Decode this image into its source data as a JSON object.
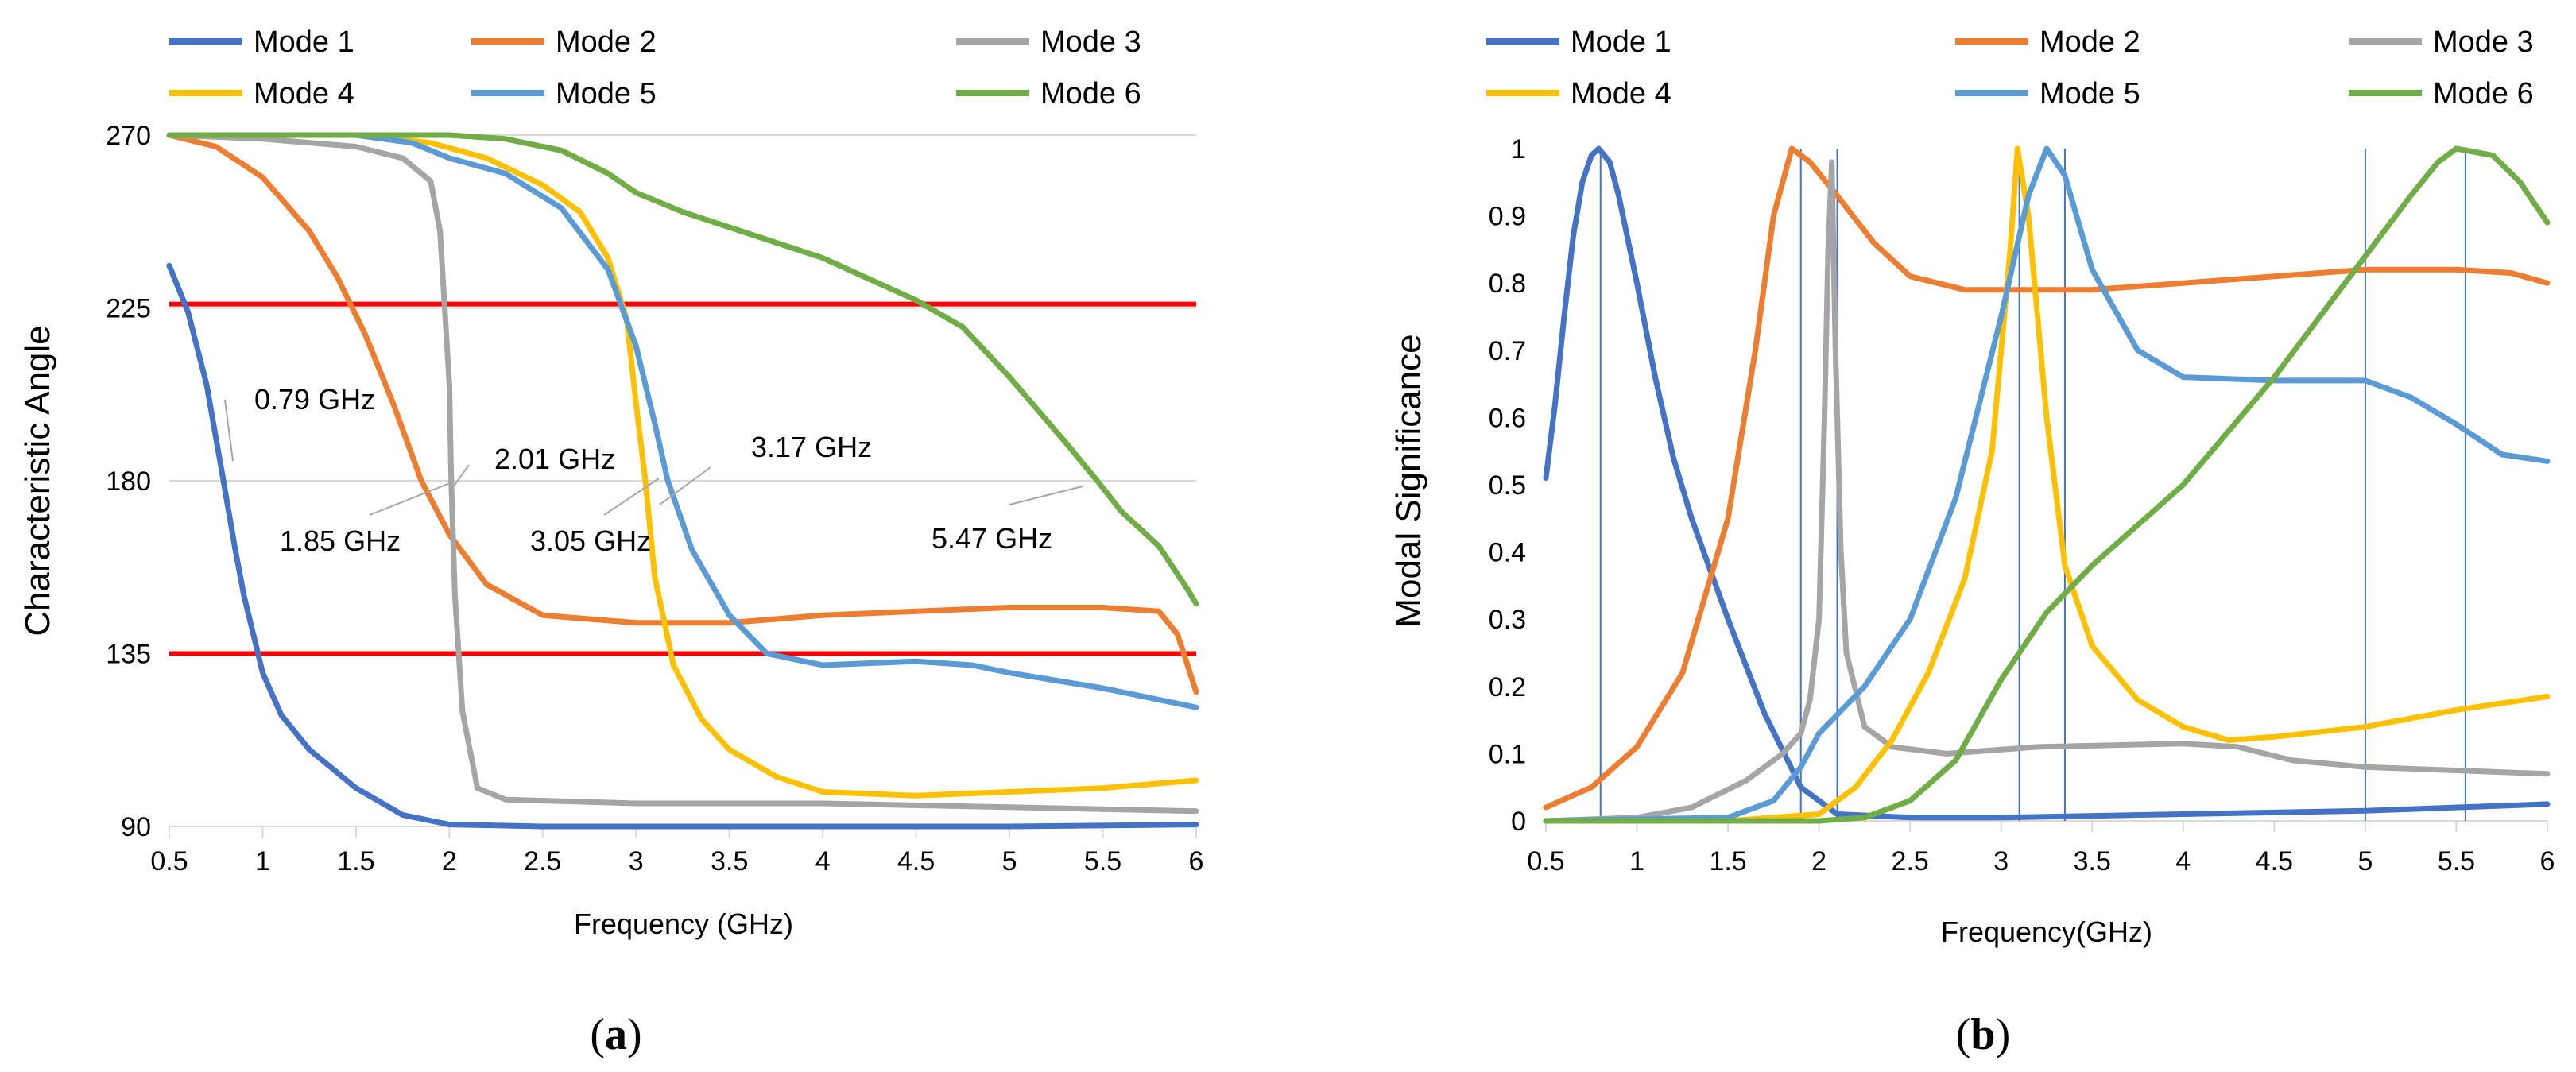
{
  "chart_data": [
    {
      "id": "a",
      "type": "line",
      "caption": "a",
      "xlabel": "Frequency (GHz)",
      "ylabel": "Characteristic Angle",
      "xlim": [
        0.5,
        6
      ],
      "ylim": [
        90,
        270
      ],
      "x_ticks": [
        "0.5",
        "1",
        "1.5",
        "2",
        "2.5",
        "3",
        "3.5",
        "4",
        "4.5",
        "5",
        "5.5",
        "6"
      ],
      "y_ticks": [
        "90",
        "135",
        "180",
        "225",
        "270"
      ],
      "grid": "horizontal",
      "legend": "top",
      "series": [
        {
          "name": "Mode 1",
          "color": "#4472C4",
          "points": [
            [
              0.5,
              236
            ],
            [
              0.6,
              224
            ],
            [
              0.7,
              205
            ],
            [
              0.79,
              180
            ],
            [
              0.85,
              163
            ],
            [
              0.9,
              150
            ],
            [
              1.0,
              130
            ],
            [
              1.1,
              119
            ],
            [
              1.25,
              110
            ],
            [
              1.5,
              100
            ],
            [
              1.75,
              93
            ],
            [
              2.0,
              90.5
            ],
            [
              2.5,
              90
            ],
            [
              3,
              90
            ],
            [
              4,
              90
            ],
            [
              5,
              90
            ],
            [
              6,
              90.5
            ]
          ]
        },
        {
          "name": "Mode 2",
          "color": "#ED7D31",
          "points": [
            [
              0.5,
              270
            ],
            [
              0.75,
              267
            ],
            [
              1.0,
              259
            ],
            [
              1.25,
              245
            ],
            [
              1.4,
              233
            ],
            [
              1.55,
              218
            ],
            [
              1.7,
              200
            ],
            [
              1.85,
              180
            ],
            [
              2.0,
              166
            ],
            [
              2.2,
              153
            ],
            [
              2.5,
              145
            ],
            [
              3.0,
              143
            ],
            [
              3.5,
              143
            ],
            [
              4.0,
              145
            ],
            [
              4.5,
              146
            ],
            [
              5.0,
              147
            ],
            [
              5.5,
              147
            ],
            [
              5.8,
              146
            ],
            [
              5.9,
              140
            ],
            [
              6.0,
              125
            ]
          ]
        },
        {
          "name": "Mode 3",
          "color": "#A5A5A5",
          "points": [
            [
              0.5,
              270
            ],
            [
              1.0,
              269
            ],
            [
              1.5,
              267
            ],
            [
              1.75,
              264
            ],
            [
              1.9,
              258
            ],
            [
              1.95,
              245
            ],
            [
              2.0,
              205
            ],
            [
              2.01,
              180
            ],
            [
              2.03,
              150
            ],
            [
              2.07,
              120
            ],
            [
              2.15,
              100
            ],
            [
              2.3,
              97
            ],
            [
              3,
              96
            ],
            [
              4,
              96
            ],
            [
              5,
              95
            ],
            [
              6,
              94
            ]
          ]
        },
        {
          "name": "Mode 4",
          "color": "#FFC000",
          "points": [
            [
              0.5,
              270
            ],
            [
              1,
              270
            ],
            [
              1.5,
              270
            ],
            [
              1.9,
              268
            ],
            [
              2.2,
              264
            ],
            [
              2.5,
              257
            ],
            [
              2.7,
              250
            ],
            [
              2.85,
              238
            ],
            [
              2.95,
              222
            ],
            [
              3.0,
              200
            ],
            [
              3.05,
              180
            ],
            [
              3.1,
              155
            ],
            [
              3.2,
              132
            ],
            [
              3.35,
              118
            ],
            [
              3.5,
              110
            ],
            [
              3.75,
              103
            ],
            [
              4.0,
              99
            ],
            [
              4.5,
              98
            ],
            [
              5,
              99
            ],
            [
              5.5,
              100
            ],
            [
              6,
              102
            ]
          ]
        },
        {
          "name": "Mode 5",
          "color": "#5B9BD5",
          "points": [
            [
              0.5,
              270
            ],
            [
              1,
              270
            ],
            [
              1.5,
              270
            ],
            [
              1.8,
              268
            ],
            [
              2.0,
              264
            ],
            [
              2.3,
              260
            ],
            [
              2.6,
              251
            ],
            [
              2.85,
              235
            ],
            [
              3.0,
              215
            ],
            [
              3.1,
              195
            ],
            [
              3.17,
              180
            ],
            [
              3.3,
              162
            ],
            [
              3.5,
              145
            ],
            [
              3.7,
              135
            ],
            [
              4.0,
              132
            ],
            [
              4.5,
              133
            ],
            [
              4.8,
              132
            ],
            [
              5.0,
              130
            ],
            [
              5.5,
              126
            ],
            [
              6.0,
              121
            ]
          ]
        },
        {
          "name": "Mode 6",
          "color": "#70AD47",
          "points": [
            [
              0.5,
              270
            ],
            [
              1,
              270
            ],
            [
              1.5,
              270
            ],
            [
              2,
              270
            ],
            [
              2.3,
              269
            ],
            [
              2.6,
              266
            ],
            [
              2.85,
              260
            ],
            [
              3.0,
              255
            ],
            [
              3.25,
              250
            ],
            [
              3.5,
              246
            ],
            [
              4.0,
              238
            ],
            [
              4.5,
              227
            ],
            [
              4.75,
              220
            ],
            [
              5.0,
              207
            ],
            [
              5.3,
              190
            ],
            [
              5.47,
              180
            ],
            [
              5.6,
              172
            ],
            [
              5.8,
              163
            ],
            [
              5.95,
              152
            ],
            [
              6.0,
              148
            ]
          ]
        }
      ],
      "hlines": [
        {
          "y": 226,
          "color": "#FF0000"
        },
        {
          "y": 135,
          "color": "#FF0000"
        }
      ],
      "annotations": [
        {
          "text": "0.79 GHz",
          "x": 0.79,
          "y": 180
        },
        {
          "text": "1.85 GHz",
          "x": 1.85,
          "y": 180
        },
        {
          "text": "2.01 GHz",
          "x": 2.01,
          "y": 180
        },
        {
          "text": "3.05 GHz",
          "x": 3.05,
          "y": 180
        },
        {
          "text": "3.17 GHz",
          "x": 3.17,
          "y": 180
        },
        {
          "text": "5.47 GHz",
          "x": 5.47,
          "y": 180
        }
      ]
    },
    {
      "id": "b",
      "type": "line",
      "caption": "b",
      "xlabel": "Frequency(GHz)",
      "ylabel": "Modal Significance",
      "xlim": [
        0.5,
        6
      ],
      "ylim": [
        0,
        1
      ],
      "x_ticks": [
        "0.5",
        "1",
        "1.5",
        "2",
        "2.5",
        "3",
        "3.5",
        "4",
        "4.5",
        "5",
        "5.5",
        "6"
      ],
      "y_ticks": [
        "0",
        "0.1",
        "0.2",
        "0.3",
        "0.4",
        "0.5",
        "0.6",
        "0.7",
        "0.8",
        "0.9",
        "1"
      ],
      "grid": "none",
      "legend": "top",
      "series": [
        {
          "name": "Mode 1",
          "color": "#4472C4",
          "points": [
            [
              0.5,
              0.51
            ],
            [
              0.55,
              0.62
            ],
            [
              0.6,
              0.75
            ],
            [
              0.65,
              0.87
            ],
            [
              0.7,
              0.95
            ],
            [
              0.75,
              0.99
            ],
            [
              0.79,
              1.0
            ],
            [
              0.85,
              0.98
            ],
            [
              0.9,
              0.93
            ],
            [
              1.0,
              0.8
            ],
            [
              1.1,
              0.66
            ],
            [
              1.2,
              0.54
            ],
            [
              1.3,
              0.45
            ],
            [
              1.5,
              0.3
            ],
            [
              1.7,
              0.16
            ],
            [
              1.9,
              0.05
            ],
            [
              2.1,
              0.01
            ],
            [
              2.5,
              0.005
            ],
            [
              3,
              0.005
            ],
            [
              4,
              0.01
            ],
            [
              5,
              0.015
            ],
            [
              6,
              0.025
            ]
          ]
        },
        {
          "name": "Mode 2",
          "color": "#ED7D31",
          "points": [
            [
              0.5,
              0.02
            ],
            [
              0.75,
              0.05
            ],
            [
              1.0,
              0.11
            ],
            [
              1.25,
              0.22
            ],
            [
              1.5,
              0.45
            ],
            [
              1.65,
              0.7
            ],
            [
              1.75,
              0.9
            ],
            [
              1.85,
              1.0
            ],
            [
              1.95,
              0.98
            ],
            [
              2.1,
              0.93
            ],
            [
              2.3,
              0.86
            ],
            [
              2.5,
              0.81
            ],
            [
              2.8,
              0.79
            ],
            [
              3.2,
              0.79
            ],
            [
              3.5,
              0.79
            ],
            [
              4.0,
              0.8
            ],
            [
              4.5,
              0.81
            ],
            [
              5.0,
              0.82
            ],
            [
              5.5,
              0.82
            ],
            [
              5.8,
              0.815
            ],
            [
              6.0,
              0.8
            ]
          ]
        },
        {
          "name": "Mode 3",
          "color": "#A5A5A5",
          "points": [
            [
              0.5,
              0
            ],
            [
              1.0,
              0.005
            ],
            [
              1.3,
              0.02
            ],
            [
              1.6,
              0.06
            ],
            [
              1.8,
              0.1
            ],
            [
              1.9,
              0.13
            ],
            [
              1.95,
              0.18
            ],
            [
              2.0,
              0.3
            ],
            [
              2.03,
              0.6
            ],
            [
              2.05,
              0.85
            ],
            [
              2.07,
              0.98
            ],
            [
              2.09,
              0.7
            ],
            [
              2.12,
              0.4
            ],
            [
              2.15,
              0.25
            ],
            [
              2.25,
              0.14
            ],
            [
              2.4,
              0.11
            ],
            [
              2.7,
              0.1
            ],
            [
              3.2,
              0.11
            ],
            [
              4.0,
              0.115
            ],
            [
              4.3,
              0.11
            ],
            [
              4.6,
              0.09
            ],
            [
              5.0,
              0.08
            ],
            [
              5.5,
              0.075
            ],
            [
              6.0,
              0.07
            ]
          ]
        },
        {
          "name": "Mode 4",
          "color": "#FFC000",
          "points": [
            [
              0.5,
              0
            ],
            [
              1.5,
              0
            ],
            [
              2.0,
              0.01
            ],
            [
              2.2,
              0.05
            ],
            [
              2.4,
              0.12
            ],
            [
              2.6,
              0.22
            ],
            [
              2.8,
              0.36
            ],
            [
              2.95,
              0.55
            ],
            [
              3.05,
              0.85
            ],
            [
              3.09,
              1.0
            ],
            [
              3.15,
              0.9
            ],
            [
              3.25,
              0.6
            ],
            [
              3.35,
              0.38
            ],
            [
              3.5,
              0.26
            ],
            [
              3.75,
              0.18
            ],
            [
              4.0,
              0.14
            ],
            [
              4.25,
              0.12
            ],
            [
              4.5,
              0.125
            ],
            [
              5.0,
              0.14
            ],
            [
              5.5,
              0.165
            ],
            [
              6.0,
              0.185
            ]
          ]
        },
        {
          "name": "Mode 5",
          "color": "#5B9BD5",
          "points": [
            [
              0.5,
              0
            ],
            [
              1.5,
              0.005
            ],
            [
              1.75,
              0.03
            ],
            [
              1.9,
              0.08
            ],
            [
              2.0,
              0.13
            ],
            [
              2.25,
              0.2
            ],
            [
              2.5,
              0.3
            ],
            [
              2.75,
              0.48
            ],
            [
              3.0,
              0.75
            ],
            [
              3.15,
              0.93
            ],
            [
              3.25,
              1.0
            ],
            [
              3.35,
              0.96
            ],
            [
              3.5,
              0.82
            ],
            [
              3.75,
              0.7
            ],
            [
              4.0,
              0.66
            ],
            [
              4.5,
              0.655
            ],
            [
              5.0,
              0.655
            ],
            [
              5.25,
              0.63
            ],
            [
              5.5,
              0.59
            ],
            [
              5.75,
              0.545
            ],
            [
              6.0,
              0.535
            ]
          ]
        },
        {
          "name": "Mode 6",
          "color": "#70AD47",
          "points": [
            [
              0.5,
              0
            ],
            [
              2.0,
              0
            ],
            [
              2.25,
              0.005
            ],
            [
              2.5,
              0.03
            ],
            [
              2.75,
              0.09
            ],
            [
              3.0,
              0.21
            ],
            [
              3.25,
              0.31
            ],
            [
              3.5,
              0.38
            ],
            [
              4.0,
              0.5
            ],
            [
              4.5,
              0.66
            ],
            [
              5.0,
              0.84
            ],
            [
              5.25,
              0.93
            ],
            [
              5.4,
              0.98
            ],
            [
              5.5,
              1.0
            ],
            [
              5.7,
              0.99
            ],
            [
              5.85,
              0.95
            ],
            [
              6.0,
              0.89
            ]
          ]
        }
      ],
      "vlines": [
        0.8,
        1.9,
        2.1,
        3.1,
        3.35,
        5.0,
        5.55
      ],
      "vline_color": "#4472C4"
    }
  ]
}
